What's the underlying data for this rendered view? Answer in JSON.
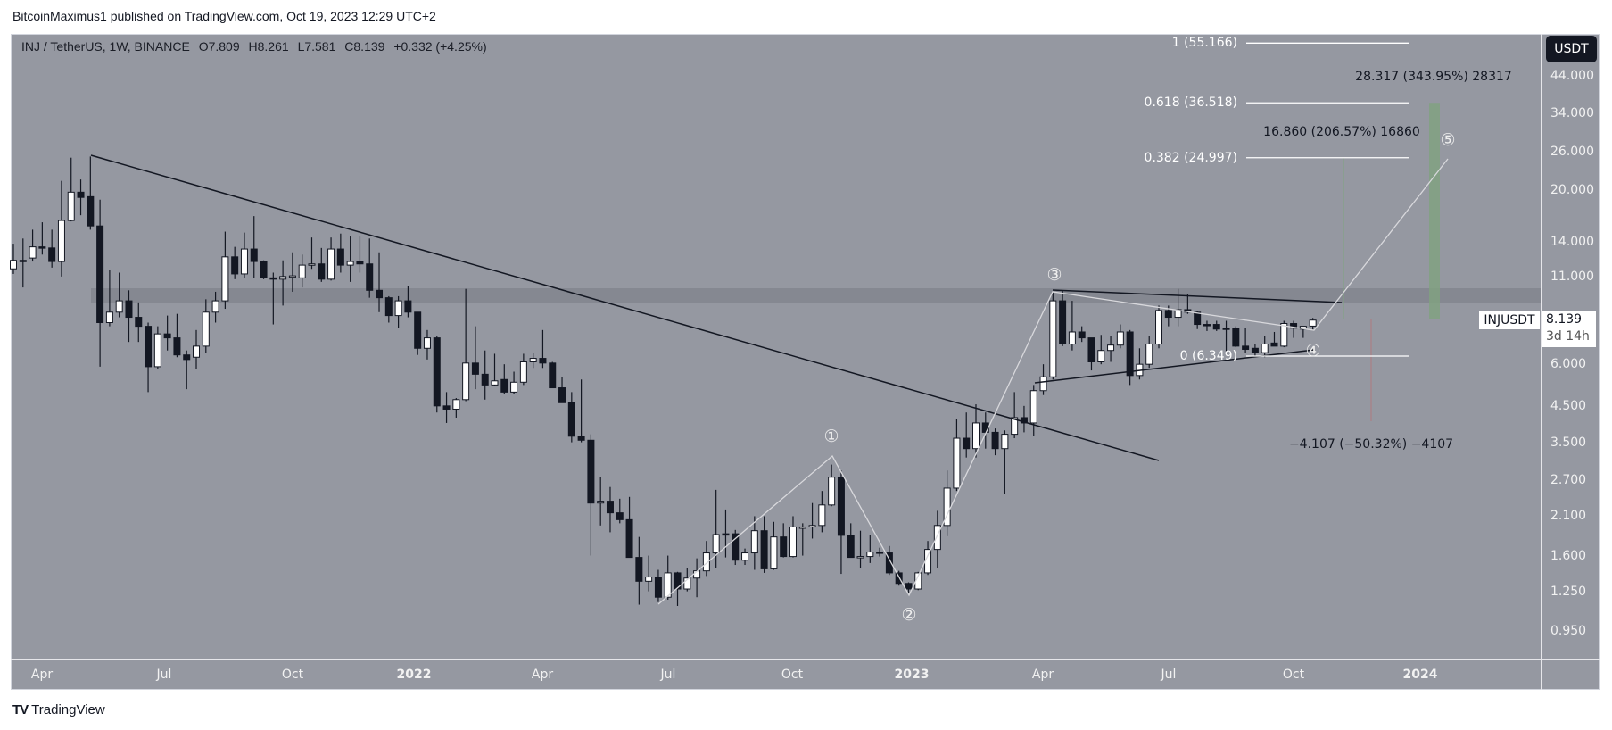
{
  "header": {
    "published": "BitcoinMaximus1 published on TradingView.com, Oct 19, 2023 12:29 UTC+2"
  },
  "legend": {
    "symbol": "INJ / TetherUS, 1W, BINANCE",
    "open": "O7.809",
    "high": "H8.261",
    "low": "L7.581",
    "close": "C8.139",
    "change": "+0.332 (+4.25%)"
  },
  "price_axis": {
    "currency_button": "USDT",
    "scale": "log",
    "ticks": [
      "44.000",
      "34.000",
      "26.000",
      "20.000",
      "14.000",
      "11.000",
      "6.000",
      "4.500",
      "3.500",
      "2.700",
      "2.100",
      "1.600",
      "1.250",
      "0.950"
    ]
  },
  "time_axis": {
    "ticks": [
      "Apr",
      "Jul",
      "Oct",
      "2022",
      "Apr",
      "Jul",
      "Oct",
      "2023",
      "Apr",
      "Jul",
      "Oct",
      "2024"
    ]
  },
  "last_price": {
    "symbol": "INJUSDT",
    "value": "8.139",
    "countdown": "3d 14h"
  },
  "fib_levels": [
    {
      "label": "1 (55.166)",
      "price": 55.166
    },
    {
      "label": "0.618 (36.518)",
      "price": 36.518
    },
    {
      "label": "0.382 (24.997)",
      "price": 24.997
    },
    {
      "label": "0 (6.349)",
      "price": 6.349
    }
  ],
  "measurements": {
    "target_high": "28.317 (343.95%) 28317",
    "target_mid": "16.860 (206.57%) 16860",
    "downside": "−4.107 (−50.32%) −4107"
  },
  "waves": [
    "①",
    "②",
    "③",
    "④",
    "⑤"
  ],
  "colors": {
    "background": "#9598a1",
    "down_candle": "#131722",
    "up_candle": "#ffffff",
    "target_zone": "#7fa37f",
    "resistance_band": "#80838c"
  },
  "footer": {
    "logo": "TV",
    "brand": "TradingView"
  },
  "chart_data": {
    "type": "candlestick",
    "interval": "1W",
    "y_scale": "log",
    "ohlc": [
      [
        11.6,
        13.8,
        11.2,
        12.3
      ],
      [
        12.3,
        14.3,
        10.2,
        12.3
      ],
      [
        12.5,
        15.2,
        12.2,
        13.5
      ],
      [
        13.5,
        16,
        12.8,
        13.4
      ],
      [
        13.4,
        15.2,
        11.7,
        12.2
      ],
      [
        12.2,
        21.3,
        11,
        16.2
      ],
      [
        16.2,
        25,
        16.1,
        19.7
      ],
      [
        19.7,
        21.5,
        16.8,
        19
      ],
      [
        19.1,
        25.2,
        15.2,
        15.6
      ],
      [
        15.6,
        18.7,
        5.9,
        8
      ],
      [
        8,
        11.5,
        7.8,
        8.6
      ],
      [
        8.6,
        11.3,
        8.3,
        9.3
      ],
      [
        9.3,
        10,
        7,
        8.3
      ],
      [
        8.3,
        9.2,
        7,
        7.8
      ],
      [
        7.8,
        8,
        4.95,
        5.9
      ],
      [
        5.9,
        7.8,
        5.8,
        7.4
      ],
      [
        7.4,
        8.4,
        6.6,
        7.2
      ],
      [
        7.2,
        8.5,
        6.3,
        6.4
      ],
      [
        6.4,
        6.6,
        5.05,
        6.2
      ],
      [
        6.3,
        7.6,
        5.8,
        6.8
      ],
      [
        6.8,
        9.4,
        6.5,
        8.6
      ],
      [
        8.6,
        9.9,
        8,
        9.3
      ],
      [
        9.3,
        15,
        8.8,
        12.6
      ],
      [
        12.6,
        13.5,
        10.8,
        11.2
      ],
      [
        11.2,
        14.9,
        10.9,
        13.3
      ],
      [
        13.3,
        16.7,
        10.9,
        12.2
      ],
      [
        12.2,
        12.3,
        10.8,
        10.9
      ],
      [
        10.9,
        11.3,
        7.9,
        10.8
      ],
      [
        10.8,
        12.3,
        9,
        11
      ],
      [
        11,
        13,
        9.9,
        11.05
      ],
      [
        10.9,
        12.8,
        10.2,
        11.9
      ],
      [
        11.9,
        14.4,
        11.6,
        12
      ],
      [
        12,
        13.4,
        10.6,
        10.8
      ],
      [
        10.8,
        14.4,
        10.7,
        13.3
      ],
      [
        13.3,
        14.8,
        11.3,
        11.9
      ],
      [
        11.9,
        14.5,
        10.6,
        12.2
      ],
      [
        12.2,
        14.5,
        11.3,
        12
      ],
      [
        12,
        14.3,
        9.5,
        10
      ],
      [
        10,
        13,
        8.6,
        9.5
      ],
      [
        9.5,
        9.6,
        8,
        8.4
      ],
      [
        8.4,
        9.6,
        7.7,
        9.3
      ],
      [
        9.3,
        10.3,
        8.3,
        8.6
      ],
      [
        8.6,
        8.6,
        6.4,
        6.7
      ],
      [
        6.7,
        7.6,
        6.2,
        7.2
      ],
      [
        7.2,
        7.3,
        4.3,
        4.5
      ],
      [
        4.5,
        4.95,
        4.0,
        4.4
      ],
      [
        4.4,
        4.75,
        4.15,
        4.7
      ],
      [
        4.7,
        10.1,
        4.65,
        6.05
      ],
      [
        6.05,
        7.8,
        5.05,
        5.6
      ],
      [
        5.6,
        6.6,
        4.7,
        5.2
      ],
      [
        5.2,
        6.45,
        5.15,
        5.35
      ],
      [
        5.4,
        6,
        4.9,
        4.95
      ],
      [
        4.95,
        5.7,
        4.9,
        5.3
      ],
      [
        5.3,
        6.45,
        5.2,
        6.1
      ],
      [
        6.1,
        6.5,
        5.85,
        6.25
      ],
      [
        6.25,
        7.6,
        5.85,
        6.05
      ],
      [
        6.05,
        6.1,
        5.1,
        5.1
      ],
      [
        5.1,
        5.5,
        4.6,
        4.6
      ],
      [
        4.6,
        4.95,
        3.5,
        3.65
      ],
      [
        3.65,
        5.4,
        3.5,
        3.55
      ],
      [
        3.55,
        3.7,
        1.6,
        2.3
      ],
      [
        2.3,
        2.75,
        1.97,
        2.33
      ],
      [
        2.33,
        2.57,
        1.88,
        2.15
      ],
      [
        2.15,
        2.37,
        2.0,
        2.05
      ],
      [
        2.05,
        2.4,
        1.58,
        1.58
      ],
      [
        1.58,
        1.82,
        1.14,
        1.34
      ],
      [
        1.34,
        1.6,
        1.25,
        1.38
      ],
      [
        1.38,
        1.45,
        1.16,
        1.2
      ],
      [
        1.2,
        1.6,
        1.18,
        1.42
      ],
      [
        1.42,
        1.43,
        1.13,
        1.27
      ],
      [
        1.27,
        1.47,
        1.25,
        1.37
      ],
      [
        1.37,
        1.57,
        1.2,
        1.44
      ],
      [
        1.44,
        1.77,
        1.39,
        1.63
      ],
      [
        1.63,
        2.52,
        1.47,
        1.85
      ],
      [
        1.86,
        2.2,
        1.58,
        1.85
      ],
      [
        1.86,
        1.91,
        1.5,
        1.55
      ],
      [
        1.55,
        1.68,
        1.5,
        1.63
      ],
      [
        1.63,
        2.1,
        1.45,
        1.9
      ],
      [
        1.9,
        2.1,
        1.42,
        1.46
      ],
      [
        1.46,
        2.02,
        1.45,
        1.82
      ],
      [
        1.82,
        2.0,
        1.58,
        1.59
      ],
      [
        1.59,
        2.1,
        1.58,
        1.95
      ],
      [
        1.95,
        2.0,
        1.6,
        1.95
      ],
      [
        1.95,
        2.3,
        1.8,
        1.97
      ],
      [
        1.97,
        2.5,
        1.88,
        2.27
      ],
      [
        2.27,
        3.0,
        2.25,
        2.75
      ],
      [
        2.75,
        2.88,
        1.41,
        1.84
      ],
      [
        1.84,
        2.0,
        1.58,
        1.58
      ],
      [
        1.58,
        1.9,
        1.47,
        1.59
      ],
      [
        1.59,
        1.85,
        1.52,
        1.64
      ],
      [
        1.64,
        1.69,
        1.59,
        1.63
      ],
      [
        1.63,
        1.71,
        1.4,
        1.42
      ],
      [
        1.42,
        1.44,
        1.3,
        1.32
      ],
      [
        1.32,
        1.33,
        1.23,
        1.27
      ],
      [
        1.27,
        1.43,
        1.26,
        1.42
      ],
      [
        1.42,
        1.77,
        1.4,
        1.67
      ],
      [
        1.67,
        2.18,
        1.47,
        1.97
      ],
      [
        1.97,
        2.88,
        1.83,
        2.55
      ],
      [
        2.55,
        4.1,
        2.5,
        3.6
      ],
      [
        3.6,
        4.3,
        3.15,
        3.35
      ],
      [
        3.35,
        4.55,
        3.15,
        4.0
      ],
      [
        4.0,
        4.3,
        3.35,
        3.75
      ],
      [
        3.75,
        3.85,
        3.2,
        3.35
      ],
      [
        3.35,
        3.8,
        2.45,
        3.7
      ],
      [
        3.7,
        4.95,
        3.6,
        4.15
      ],
      [
        4.15,
        4.5,
        3.75,
        4.0
      ],
      [
        4.0,
        5.2,
        3.65,
        5.0
      ],
      [
        5.0,
        6.0,
        4.85,
        5.5
      ],
      [
        5.5,
        9.85,
        5.4,
        9.3
      ],
      [
        9.3,
        10.0,
        6.8,
        6.9
      ],
      [
        6.9,
        9.3,
        6.6,
        7.5
      ],
      [
        7.5,
        7.8,
        7.0,
        7.2
      ],
      [
        7.2,
        7.2,
        5.75,
        6.1
      ],
      [
        6.1,
        7.35,
        6.0,
        6.6
      ],
      [
        6.6,
        7.3,
        6.1,
        6.85
      ],
      [
        6.85,
        7.9,
        6.7,
        7.5
      ],
      [
        7.5,
        7.6,
        5.2,
        5.55
      ],
      [
        5.55,
        6.7,
        5.4,
        6.0
      ],
      [
        6.0,
        7.3,
        5.85,
        6.9
      ],
      [
        6.9,
        9.0,
        6.7,
        8.7
      ],
      [
        8.7,
        9.0,
        7.8,
        8.3
      ],
      [
        8.3,
        10.1,
        7.8,
        8.75
      ],
      [
        8.75,
        9.75,
        8.5,
        8.6
      ],
      [
        8.6,
        8.65,
        7.65,
        7.9
      ],
      [
        7.9,
        8.1,
        7.55,
        7.85
      ],
      [
        7.9,
        8.1,
        7.55,
        7.65
      ],
      [
        7.7,
        8.1,
        6.4,
        7.65
      ],
      [
        7.7,
        7.8,
        6.75,
        6.8
      ],
      [
        6.8,
        7.7,
        6.5,
        6.65
      ],
      [
        6.7,
        6.9,
        6.3,
        6.5
      ],
      [
        6.5,
        7.3,
        6.3,
        6.9
      ],
      [
        6.95,
        7.5,
        6.8,
        6.8
      ],
      [
        6.8,
        8.1,
        6.75,
        7.95
      ],
      [
        7.95,
        8.1,
        7.2,
        7.7
      ],
      [
        7.65,
        7.8,
        7.2,
        7.8
      ],
      [
        7.809,
        8.261,
        7.581,
        8.139
      ]
    ]
  }
}
